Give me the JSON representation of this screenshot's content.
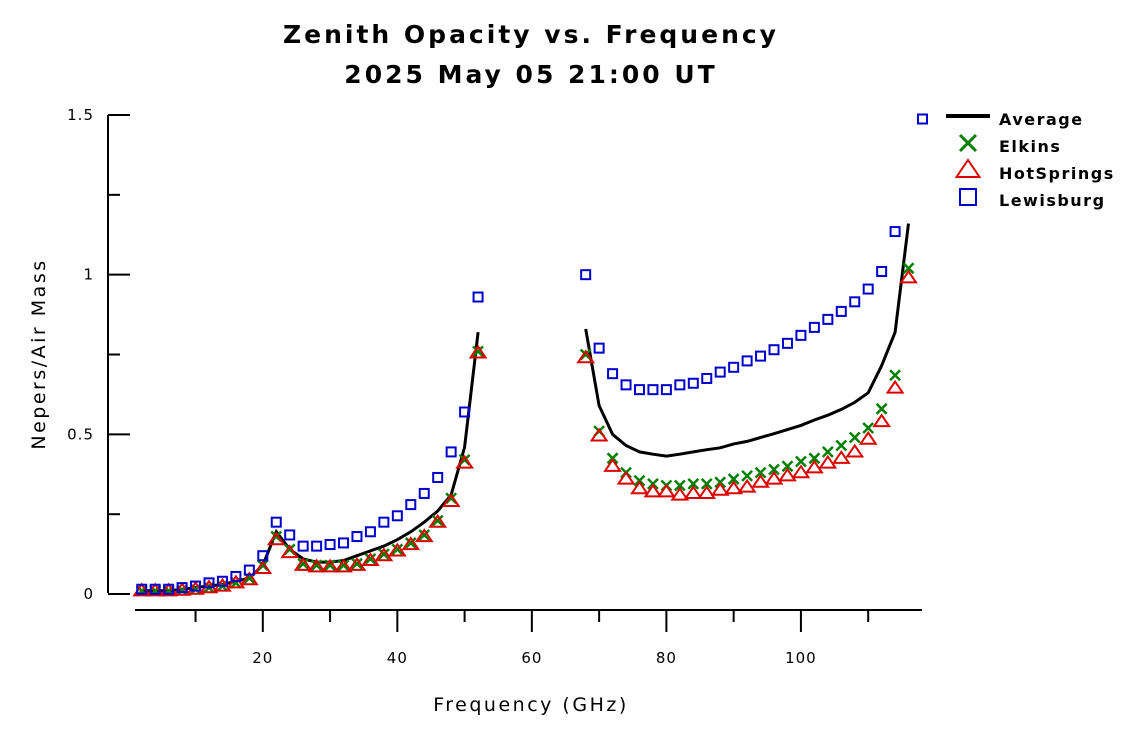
{
  "chart_data": {
    "type": "scatter",
    "title": "Zenith Opacity vs. Frequency",
    "subtitle": "2025 May 05 21:00 UT",
    "xlabel": "Frequency (GHz)",
    "ylabel": "Nepers/Air Mass",
    "xlim": [
      1,
      118
    ],
    "ylim": [
      -0.05,
      1.5
    ],
    "x_ticks": [
      20,
      40,
      60,
      80,
      100
    ],
    "x_minor_ticks": [
      10,
      30,
      50,
      70,
      90,
      110
    ],
    "y_ticks": [
      0,
      0.5,
      1,
      1.5
    ],
    "y_tick_labels": [
      "0",
      "0.5",
      "1",
      "1.5"
    ],
    "y_minor_ticks": [
      0.25,
      0.75,
      1.25
    ],
    "legend_position": "top-right",
    "series": [
      {
        "name": "Average",
        "style": "line",
        "color": "#000000",
        "segments": [
          {
            "x": [
              2,
              4,
              6,
              8,
              10,
              12,
              14,
              16,
              18,
              20,
              22,
              24,
              26,
              28,
              30,
              32,
              34,
              36,
              38,
              40,
              42,
              44,
              46,
              48,
              50,
              52
            ],
            "y": [
              0.01,
              0.01,
              0.01,
              0.015,
              0.02,
              0.025,
              0.03,
              0.04,
              0.05,
              0.09,
              0.195,
              0.14,
              0.11,
              0.1,
              0.1,
              0.105,
              0.12,
              0.135,
              0.15,
              0.17,
              0.195,
              0.225,
              0.26,
              0.31,
              0.46,
              0.82
            ]
          },
          {
            "x": [
              68,
              70,
              72,
              74,
              76,
              78,
              80,
              82,
              84,
              86,
              88,
              90,
              92,
              94,
              96,
              98,
              100,
              102,
              104,
              106,
              108,
              110,
              112,
              114,
              116
            ],
            "y": [
              0.83,
              0.59,
              0.5,
              0.465,
              0.445,
              0.438,
              0.432,
              0.438,
              0.445,
              0.452,
              0.458,
              0.47,
              0.478,
              0.49,
              0.502,
              0.515,
              0.528,
              0.545,
              0.56,
              0.578,
              0.6,
              0.63,
              0.715,
              0.82,
              1.16
            ]
          }
        ]
      },
      {
        "name": "Elkins",
        "style": "x-marker",
        "color": "#008000",
        "x": [
          2,
          4,
          6,
          8,
          10,
          12,
          14,
          16,
          18,
          20,
          22,
          24,
          26,
          28,
          30,
          32,
          34,
          36,
          38,
          40,
          42,
          44,
          46,
          48,
          50,
          52,
          68,
          70,
          72,
          74,
          76,
          78,
          80,
          82,
          84,
          86,
          88,
          90,
          92,
          94,
          96,
          98,
          100,
          102,
          104,
          106,
          108,
          110,
          112,
          114,
          116
        ],
        "y": [
          0.01,
          0.01,
          0.01,
          0.012,
          0.015,
          0.02,
          0.025,
          0.035,
          0.05,
          0.09,
          0.18,
          0.14,
          0.095,
          0.09,
          0.09,
          0.09,
          0.095,
          0.11,
          0.125,
          0.14,
          0.16,
          0.185,
          0.23,
          0.3,
          0.42,
          0.76,
          0.75,
          0.51,
          0.425,
          0.38,
          0.355,
          0.345,
          0.34,
          0.34,
          0.345,
          0.345,
          0.35,
          0.36,
          0.37,
          0.38,
          0.39,
          0.4,
          0.415,
          0.425,
          0.445,
          0.465,
          0.49,
          0.52,
          0.58,
          0.685,
          1.02
        ]
      },
      {
        "name": "HotSprings",
        "style": "triangle-marker",
        "color": "#dd0000",
        "x": [
          2,
          4,
          6,
          8,
          10,
          12,
          14,
          16,
          18,
          20,
          22,
          24,
          26,
          28,
          30,
          32,
          34,
          36,
          38,
          40,
          42,
          44,
          46,
          48,
          50,
          52,
          68,
          70,
          72,
          74,
          76,
          78,
          80,
          82,
          84,
          86,
          88,
          90,
          92,
          94,
          96,
          98,
          100,
          102,
          104,
          106,
          108,
          110,
          112,
          114,
          116
        ],
        "y": [
          0.01,
          0.01,
          0.01,
          0.012,
          0.015,
          0.02,
          0.025,
          0.035,
          0.045,
          0.08,
          0.17,
          0.13,
          0.09,
          0.085,
          0.085,
          0.085,
          0.09,
          0.105,
          0.12,
          0.135,
          0.155,
          0.18,
          0.225,
          0.29,
          0.41,
          0.755,
          0.74,
          0.495,
          0.4,
          0.36,
          0.33,
          0.32,
          0.32,
          0.31,
          0.315,
          0.315,
          0.325,
          0.33,
          0.335,
          0.35,
          0.36,
          0.37,
          0.38,
          0.395,
          0.41,
          0.425,
          0.445,
          0.485,
          0.54,
          0.645,
          0.99
        ]
      },
      {
        "name": "Lewisburg",
        "style": "square-marker",
        "color": "#0000cc",
        "x": [
          2,
          4,
          6,
          8,
          10,
          12,
          14,
          16,
          18,
          20,
          22,
          24,
          26,
          28,
          30,
          32,
          34,
          36,
          38,
          40,
          42,
          44,
          46,
          48,
          50,
          52,
          68,
          70,
          72,
          74,
          76,
          78,
          80,
          82,
          84,
          86,
          88,
          90,
          92,
          94,
          96,
          98,
          100,
          102,
          104,
          106,
          108,
          110,
          112,
          114
        ],
        "y": [
          0.015,
          0.015,
          0.015,
          0.02,
          0.025,
          0.035,
          0.04,
          0.055,
          0.075,
          0.12,
          0.225,
          0.185,
          0.15,
          0.15,
          0.155,
          0.16,
          0.18,
          0.195,
          0.225,
          0.245,
          0.28,
          0.315,
          0.365,
          0.445,
          0.57,
          0.93,
          1.0,
          0.77,
          0.69,
          0.655,
          0.64,
          0.64,
          0.64,
          0.655,
          0.66,
          0.675,
          0.695,
          0.71,
          0.73,
          0.745,
          0.765,
          0.785,
          0.81,
          0.835,
          0.86,
          0.885,
          0.915,
          0.955,
          1.01,
          1.135
        ]
      }
    ]
  }
}
